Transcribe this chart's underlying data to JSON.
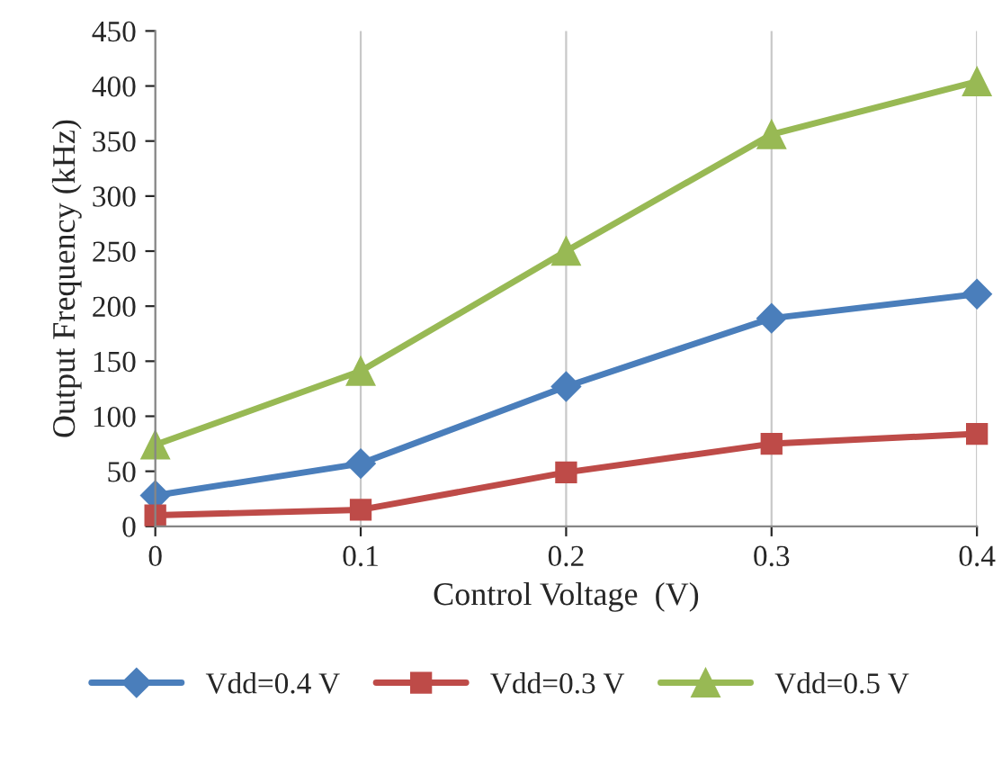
{
  "chart_data": {
    "type": "line",
    "xlabel": "Control Voltage  (V)",
    "ylabel": "Output Frequency (kHz)",
    "x": [
      0,
      0.1,
      0.2,
      0.3,
      0.4
    ],
    "series": [
      {
        "name": "Vdd=0.4 V",
        "color": "#4a7ebb",
        "marker": "diamond",
        "values": [
          28,
          57,
          127,
          189,
          211
        ]
      },
      {
        "name": "Vdd=0.3 V",
        "color": "#be4b48",
        "marker": "square",
        "values": [
          10,
          15,
          49,
          75,
          84
        ]
      },
      {
        "name": "Vdd=0.5 V",
        "color": "#98b954",
        "marker": "triangle",
        "values": [
          74,
          141,
          250,
          356,
          404
        ]
      }
    ],
    "xlim": [
      0,
      0.4
    ],
    "xticks": [
      0,
      0.1,
      0.2,
      0.3,
      0.4
    ],
    "ylim": [
      0,
      450
    ],
    "yticks": [
      0,
      50,
      100,
      150,
      200,
      250,
      300,
      350,
      400,
      450
    ],
    "grid": "x",
    "legend": "bottom",
    "line_style": "solid"
  }
}
